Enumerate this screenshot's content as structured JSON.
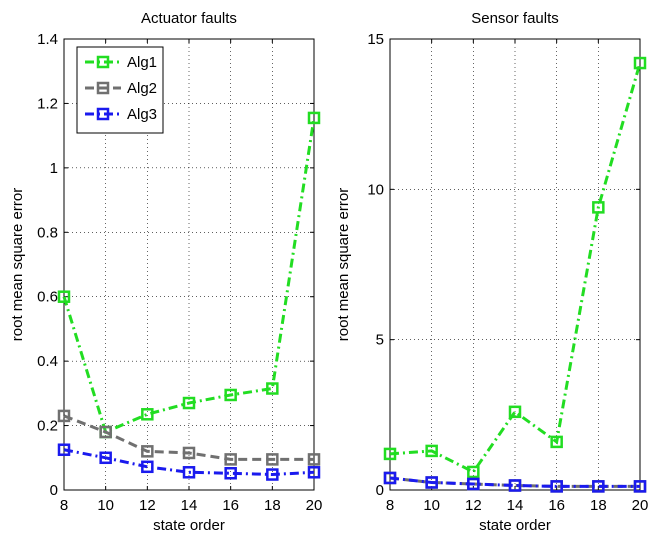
{
  "chart_data": [
    {
      "type": "line",
      "title": "Actuator faults",
      "xlabel": "state order",
      "ylabel": "root mean square error",
      "x": [
        8,
        10,
        12,
        14,
        16,
        18,
        20
      ],
      "xlim": [
        8,
        20
      ],
      "ylim": [
        0,
        1.4
      ],
      "xticks": [
        "8",
        "10",
        "12",
        "14",
        "16",
        "18",
        "20"
      ],
      "yticks": [
        "0",
        "0.2",
        "0.4",
        "0.6",
        "0.8",
        "1",
        "1.2",
        "1.4"
      ],
      "grid": true,
      "legend": "top-left",
      "series": [
        {
          "name": "Alg1",
          "color": "#22dd22",
          "values": [
            0.6,
            0.18,
            0.235,
            0.27,
            0.295,
            0.315,
            1.155
          ]
        },
        {
          "name": "Alg2",
          "color": "#707070",
          "values": [
            0.23,
            0.18,
            0.12,
            0.115,
            0.095,
            0.095,
            0.095
          ]
        },
        {
          "name": "Alg3",
          "color": "#1a1aee",
          "values": [
            0.125,
            0.1,
            0.072,
            0.055,
            0.052,
            0.048,
            0.055
          ]
        }
      ]
    },
    {
      "type": "line",
      "title": "Sensor faults",
      "xlabel": "state order",
      "ylabel": "root mean square error",
      "x": [
        8,
        10,
        12,
        14,
        16,
        18,
        20
      ],
      "xlim": [
        8,
        20
      ],
      "ylim": [
        0,
        15
      ],
      "xticks": [
        "8",
        "10",
        "12",
        "14",
        "16",
        "18",
        "20"
      ],
      "yticks": [
        "0",
        "5",
        "10",
        "15"
      ],
      "grid": true,
      "series": [
        {
          "name": "Alg1",
          "color": "#22dd22",
          "values": [
            1.2,
            1.3,
            0.6,
            2.6,
            1.6,
            9.4,
            14.2
          ]
        },
        {
          "name": "Alg2",
          "color": "#707070",
          "values": [
            0.4,
            0.25,
            0.2,
            0.15,
            0.12,
            0.12,
            0.12
          ]
        },
        {
          "name": "Alg3",
          "color": "#1a1aee",
          "values": [
            0.4,
            0.25,
            0.2,
            0.15,
            0.12,
            0.12,
            0.12
          ]
        }
      ]
    }
  ]
}
